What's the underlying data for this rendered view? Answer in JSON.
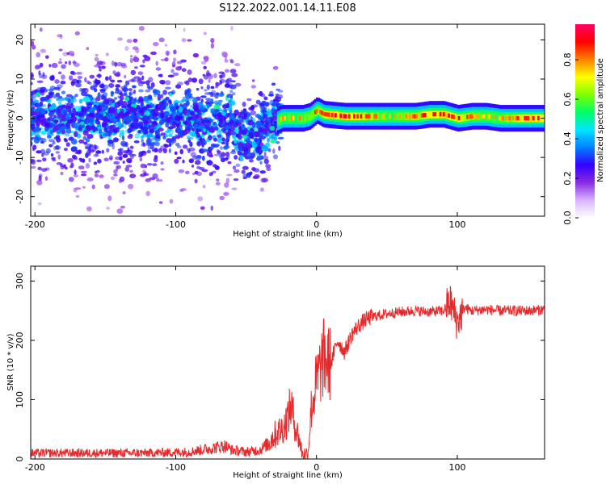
{
  "title": "S122.2022.001.14.11.E08",
  "chart_data": [
    {
      "type": "heatmap",
      "xlabel": "Height of straight line (km)",
      "ylabel": "Frequency (Hz)",
      "xlim": [
        -203,
        162
      ],
      "ylim": [
        -25,
        24
      ],
      "xticks": [
        -200,
        -100,
        0,
        100
      ],
      "yticks": [
        -20,
        -10,
        0,
        10,
        20
      ],
      "ridge": {
        "x": [
          -203,
          -90,
          -80,
          -70,
          -60,
          -55,
          -50,
          -45,
          -40,
          -35,
          -30,
          -25,
          -20,
          -10,
          -5,
          0,
          5,
          20,
          40,
          60,
          70,
          80,
          90,
          100,
          110,
          120,
          130,
          140,
          150,
          162
        ],
        "y": [
          0,
          0,
          -2,
          -1,
          0,
          -4,
          -6,
          -5,
          -4,
          -2,
          -1,
          0,
          0,
          0,
          0.5,
          2,
          1,
          0.5,
          0.5,
          0.5,
          0.5,
          1,
          1,
          0,
          0.5,
          0.5,
          0,
          0,
          0,
          0
        ]
      },
      "colorbar": {
        "label": "Normalized spectral amplitude",
        "ticks": [
          "0.0",
          "0.2",
          "0.4",
          "0.6",
          "0.8"
        ],
        "tick_values": [
          0.0,
          0.2,
          0.4,
          0.6,
          0.8
        ],
        "range": [
          0,
          0.98
        ],
        "colors": [
          "#ffffff",
          "#d9b3ff",
          "#8a2be2",
          "#3300ff",
          "#0080ff",
          "#00e5ff",
          "#00ff66",
          "#80ff00",
          "#ffff00",
          "#ff8000",
          "#ff0000",
          "#ff0066"
        ]
      }
    },
    {
      "type": "line",
      "xlabel": "Height of straight line (km)",
      "ylabel": "SNR (10 * v/v)",
      "xlim": [
        -203,
        162
      ],
      "ylim": [
        0,
        325
      ],
      "xticks": [
        -200,
        -100,
        0,
        100
      ],
      "yticks": [
        0,
        100,
        200,
        300
      ],
      "color": "#e8292b",
      "series": [
        {
          "x": [
            -203,
            -180,
            -150,
            -120,
            -90,
            -75,
            -65,
            -60,
            -50,
            -40,
            -35,
            -30,
            -25,
            -22,
            -18,
            -15,
            -12,
            -10,
            -6,
            -4,
            0,
            5,
            10,
            15,
            20,
            25,
            30,
            35,
            40,
            50,
            60,
            70,
            80,
            90,
            95,
            100,
            105,
            110,
            120,
            130,
            140,
            150,
            162
          ],
          "y": [
            10,
            10,
            10,
            10,
            12,
            18,
            22,
            15,
            12,
            15,
            25,
            40,
            50,
            60,
            90,
            55,
            30,
            8,
            10,
            80,
            130,
            170,
            160,
            200,
            180,
            210,
            225,
            235,
            240,
            245,
            248,
            250,
            248,
            250,
            265,
            230,
            255,
            250,
            252,
            250,
            250,
            250,
            252
          ]
        }
      ]
    }
  ]
}
